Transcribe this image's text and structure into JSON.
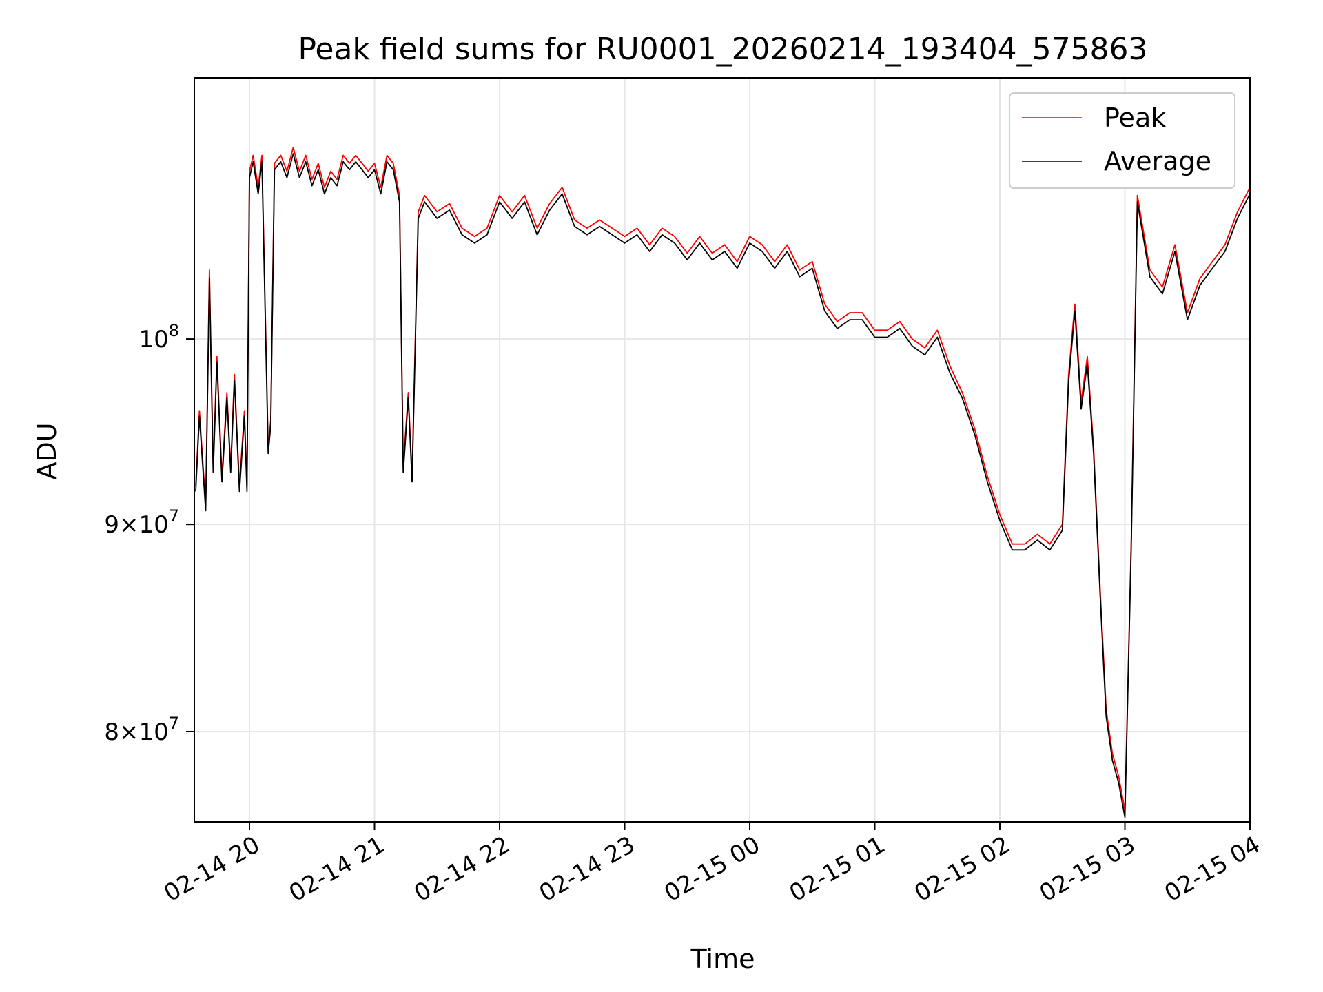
{
  "chart_data": {
    "type": "line",
    "title": "Peak field sums for RU0001_20260214_193404_575863",
    "xlabel": "Time",
    "ylabel": "ADU",
    "yscale": "log",
    "ylim": [
      76000000,
      116000000
    ],
    "grid": true,
    "legend_position": "top-right",
    "x_ticks": [
      "02-14 20",
      "02-14 21",
      "02-14 22",
      "02-14 23",
      "02-15 00",
      "02-15 01",
      "02-15 02",
      "02-15 03",
      "02-15 04"
    ],
    "y_ticks": [
      {
        "value": 80000000,
        "base": "8",
        "exp": "7",
        "mult": true
      },
      {
        "value": 90000000,
        "base": "9",
        "exp": "7",
        "mult": true
      },
      {
        "value": 100000000,
        "base": "10",
        "exp": "8",
        "mult": false
      }
    ],
    "x_hours_from_0200_start": [
      -0.43,
      -0.4,
      -0.35,
      -0.32,
      -0.29,
      -0.26,
      -0.22,
      -0.18,
      -0.15,
      -0.12,
      -0.08,
      -0.04,
      -0.02,
      0.0,
      0.03,
      0.07,
      0.1,
      0.15,
      0.17,
      0.2,
      0.25,
      0.3,
      0.35,
      0.4,
      0.45,
      0.5,
      0.55,
      0.6,
      0.65,
      0.7,
      0.75,
      0.8,
      0.85,
      0.9,
      0.95,
      1.0,
      1.05,
      1.1,
      1.15,
      1.2,
      1.23,
      1.27,
      1.3,
      1.35,
      1.4,
      1.5,
      1.6,
      1.7,
      1.8,
      1.9,
      2.0,
      2.1,
      2.2,
      2.3,
      2.4,
      2.5,
      2.6,
      2.7,
      2.8,
      2.9,
      3.0,
      3.1,
      3.2,
      3.3,
      3.4,
      3.5,
      3.6,
      3.7,
      3.8,
      3.9,
      4.0,
      4.1,
      4.2,
      4.3,
      4.4,
      4.5,
      4.6,
      4.7,
      4.8,
      4.9,
      5.0,
      5.1,
      5.2,
      5.3,
      5.4,
      5.5,
      5.6,
      5.7,
      5.8,
      5.9,
      6.0,
      6.1,
      6.2,
      6.3,
      6.4,
      6.5,
      6.55,
      6.6,
      6.65,
      6.7,
      6.75,
      6.8,
      6.85,
      6.9,
      6.95,
      7.0,
      7.05,
      7.1,
      7.2,
      7.3,
      7.4,
      7.5,
      7.6,
      7.7,
      7.8,
      7.9,
      8.0,
      8.05
    ],
    "series": [
      {
        "name": "Peak",
        "color": "#ff0000",
        "values": [
          92000000,
          96000000,
          91000000,
          104000000,
          93000000,
          99000000,
          92500000,
          97000000,
          93000000,
          98000000,
          92000000,
          96000000,
          92000000,
          110000000,
          111000000,
          109000000,
          111000000,
          94000000,
          95500000,
          110500000,
          111000000,
          110000000,
          111500000,
          110000000,
          111000000,
          109500000,
          110500000,
          109000000,
          110000000,
          109500000,
          111000000,
          110500000,
          111000000,
          110500000,
          110000000,
          110500000,
          109000000,
          111000000,
          110500000,
          108500000,
          93000000,
          97000000,
          92500000,
          107500000,
          108500000,
          107500000,
          108000000,
          106500000,
          106000000,
          106500000,
          108500000,
          107500000,
          108500000,
          106500000,
          108000000,
          109000000,
          107000000,
          106500000,
          107000000,
          106500000,
          106000000,
          106500000,
          105500000,
          106500000,
          106000000,
          105000000,
          106000000,
          105000000,
          105500000,
          104500000,
          106000000,
          105500000,
          104500000,
          105500000,
          104000000,
          104500000,
          102000000,
          101000000,
          101500000,
          101500000,
          100500000,
          100500000,
          101000000,
          100000000,
          99500000,
          100500000,
          98500000,
          97000000,
          95000000,
          92500000,
          90500000,
          89000000,
          89000000,
          89500000,
          89000000,
          90000000,
          98000000,
          102000000,
          96500000,
          99000000,
          94000000,
          87000000,
          81000000,
          79000000,
          78000000,
          76500000,
          89000000,
          108500000,
          104000000,
          103000000,
          105500000,
          101500000,
          103500000,
          104500000,
          105500000,
          107500000,
          109000000,
          112000000,
          116000000
        ],
        "note": "approximate trace"
      },
      {
        "name": "Average",
        "color": "#000000",
        "values": [
          91700000,
          95700000,
          90700000,
          103500000,
          92700000,
          98700000,
          92200000,
          96700000,
          92700000,
          97700000,
          91700000,
          95700000,
          91700000,
          109600000,
          110600000,
          108600000,
          110600000,
          93700000,
          95200000,
          110100000,
          110600000,
          109600000,
          111100000,
          109600000,
          110600000,
          109100000,
          110100000,
          108600000,
          109600000,
          109100000,
          110600000,
          110100000,
          110600000,
          110100000,
          109600000,
          110100000,
          108600000,
          110600000,
          110100000,
          108100000,
          92700000,
          96700000,
          92200000,
          107100000,
          108100000,
          107100000,
          107600000,
          106100000,
          105600000,
          106100000,
          108100000,
          107100000,
          108100000,
          106100000,
          107600000,
          108600000,
          106600000,
          106100000,
          106600000,
          106100000,
          105600000,
          106100000,
          105100000,
          106100000,
          105600000,
          104600000,
          105600000,
          104600000,
          105100000,
          104100000,
          105600000,
          105100000,
          104100000,
          105100000,
          103600000,
          104100000,
          101600000,
          100600000,
          101100000,
          101100000,
          100100000,
          100100000,
          100600000,
          99600000,
          99100000,
          100100000,
          98100000,
          96700000,
          94700000,
          92200000,
          90200000,
          88700000,
          88700000,
          89200000,
          88700000,
          89700000,
          97600000,
          101600000,
          96100000,
          98600000,
          93700000,
          86700000,
          80700000,
          78700000,
          77700000,
          76200000,
          88700000,
          108100000,
          103600000,
          102600000,
          105100000,
          101100000,
          103100000,
          104100000,
          105100000,
          107100000,
          108600000,
          111600000,
          115500000
        ],
        "note": "approximate trace"
      }
    ]
  }
}
